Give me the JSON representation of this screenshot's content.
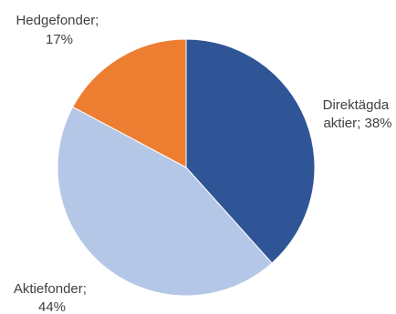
{
  "chart_data": {
    "type": "pie",
    "slices": [
      {
        "label": "Direktägda aktier",
        "value": 38,
        "value_text": "38%",
        "color": "#2F5597",
        "label_lines": [
          "Direktägda",
          "aktier; 38%"
        ]
      },
      {
        "label": "Aktiefonder",
        "value": 44,
        "value_text": "44%",
        "color": "#B4C7E7",
        "label_lines": [
          "Aktiefonder;",
          "44%"
        ]
      },
      {
        "label": "Hedgefonder",
        "value": 17,
        "value_text": "17%",
        "color": "#ED7D31",
        "label_lines": [
          "Hedgefonder;",
          "17%"
        ]
      }
    ],
    "start": "12 o'clock",
    "direction": "clockwise",
    "legend": "none"
  }
}
